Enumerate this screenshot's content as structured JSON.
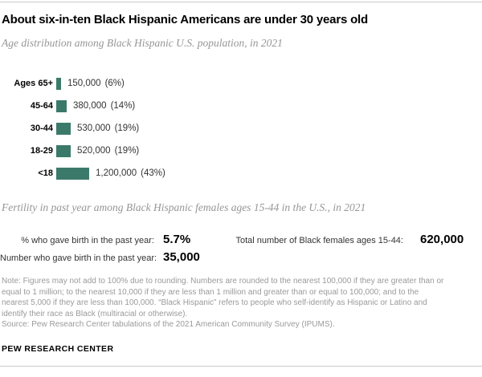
{
  "header": {
    "title": "About six-in-ten Black Hispanic Americans are under 30 years old",
    "subtitle": "Age distribution among Black Hispanic U.S. population, in 2021"
  },
  "chart_data": {
    "type": "bar",
    "orientation": "horizontal",
    "title": "Age distribution among Black Hispanic U.S. population, in 2021",
    "categories": [
      "Ages 65+",
      "45-64",
      "30-44",
      "18-29",
      "<18"
    ],
    "values": [
      150000,
      380000,
      530000,
      520000,
      1200000
    ],
    "value_labels": [
      "150,000",
      "380,000",
      "530,000",
      "520,000",
      "1,200,000"
    ],
    "pct": [
      6,
      14,
      19,
      19,
      43
    ],
    "pct_labels": [
      "(6%)",
      "(14%)",
      "(19%)",
      "(19%)",
      "(43%)"
    ],
    "bar_color": "#3b7a6a",
    "xlim": [
      0,
      1200000
    ],
    "grid": false,
    "legend": false
  },
  "fertility": {
    "subtitle": "Fertility in past year among Black Hispanic females ages 15-44 in the U.S., in 2021",
    "stats": [
      {
        "label": "% who gave birth in the past year:",
        "value": "5.7%"
      },
      {
        "label": "Number who gave birth in the past year:",
        "value": "35,000"
      },
      {
        "label": "Total number of Black females ages 15-44:",
        "value": "620,000"
      }
    ]
  },
  "note": {
    "lines": [
      "Note: Figures may not add to 100% due to rounding. Numbers are rounded to the nearest 100,000 if they are greater than or",
      "equal to 1 million; to the nearest 10,000 if they are less than 1 million and greater than or equal to 100,000; and to the",
      "nearest 5,000 if they are less than 100,000. “Black Hispanic” refers to people who self-identify as Hispanic or Latino and",
      "identify their race as Black (multiracial or otherwise).",
      "Source: Pew Research Center tabulations of the 2021 American Community Survey (IPUMS)."
    ]
  },
  "footer": {
    "brand": "PEW RESEARCH CENTER"
  },
  "colors": {
    "accent_teal": "#3b7a6a",
    "muted_text": "#969696",
    "note_text": "#9a9a9a",
    "rule": "#c9c9c9"
  }
}
